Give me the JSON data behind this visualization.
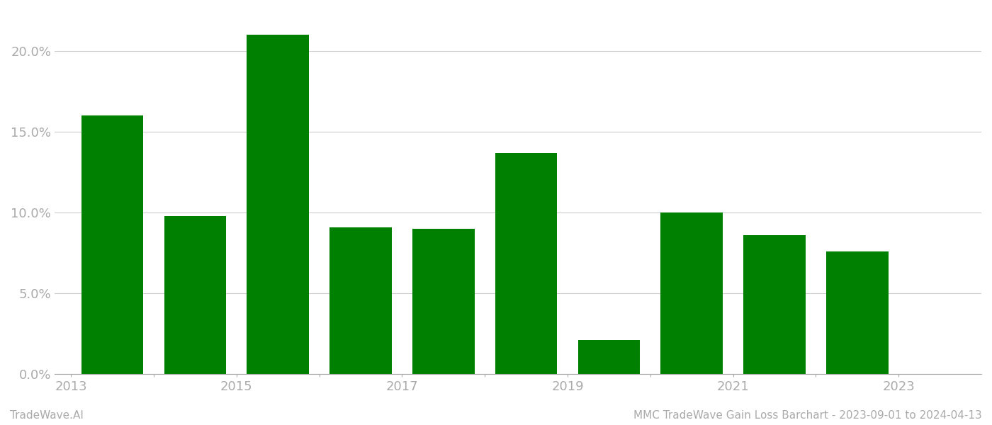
{
  "years": [
    2013,
    2014,
    2015,
    2016,
    2017,
    2018,
    2019,
    2020,
    2021,
    2022
  ],
  "values": [
    0.16,
    0.098,
    0.21,
    0.091,
    0.09,
    0.137,
    0.021,
    0.1,
    0.086,
    0.076
  ],
  "bar_color": "#008000",
  "background_color": "#ffffff",
  "grid_color": "#cccccc",
  "tick_label_color": "#aaaaaa",
  "ylim": [
    0,
    0.225
  ],
  "yticks": [
    0.0,
    0.05,
    0.1,
    0.15,
    0.2
  ],
  "xtick_labels": [
    "2013",
    "",
    "2015",
    "",
    "2017",
    "",
    "2019",
    "",
    "2021",
    "",
    "2023"
  ],
  "xtick_positions": [
    2012.5,
    2013.5,
    2014.5,
    2015.5,
    2016.5,
    2017.5,
    2018.5,
    2019.5,
    2020.5,
    2021.5,
    2022.5
  ],
  "footer_left": "TradeWave.AI",
  "footer_right": "MMC TradeWave Gain Loss Barchart - 2023-09-01 to 2024-04-13",
  "footer_color": "#aaaaaa",
  "bar_width": 0.75,
  "xlim_left": 2012.3,
  "xlim_right": 2023.5
}
